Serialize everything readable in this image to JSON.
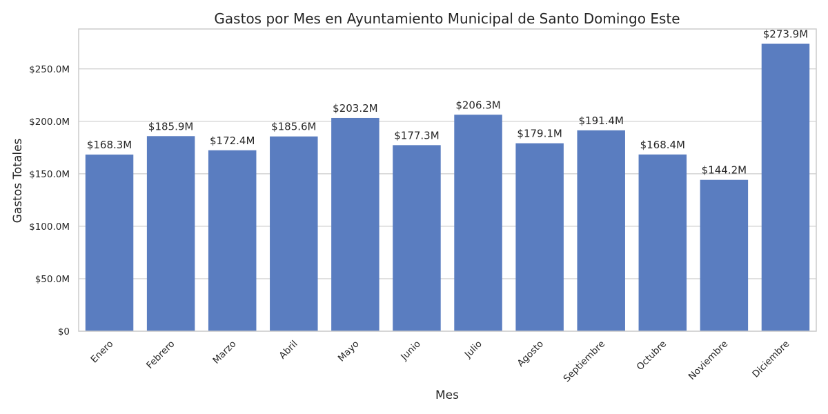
{
  "chart_data": {
    "type": "bar",
    "title": "Gastos por Mes en Ayuntamiento Municipal de Santo Domingo Este",
    "xlabel": "Mes",
    "ylabel": "Gastos Totales",
    "categories": [
      "Enero",
      "Febrero",
      "Marzo",
      "Abril",
      "Mayo",
      "Junio",
      "Julio",
      "Agosto",
      "Septiembre",
      "Octubre",
      "Noviembre",
      "Diciembre"
    ],
    "values": [
      168.3,
      185.9,
      172.4,
      185.6,
      203.2,
      177.3,
      206.3,
      179.1,
      191.4,
      168.4,
      144.2,
      273.9
    ],
    "value_unit": "millions",
    "data_labels": [
      "$168.3M",
      "$185.9M",
      "$172.4M",
      "$185.6M",
      "$203.2M",
      "$177.3M",
      "$206.3M",
      "$179.1M",
      "$191.4M",
      "$168.4M",
      "$144.2M",
      "$273.9M"
    ],
    "yticks": [
      0,
      50,
      100,
      150,
      200,
      250
    ],
    "ytick_labels": [
      "$0",
      "$50.0M",
      "$100.0M",
      "$150.0M",
      "$200.0M",
      "$250.0M"
    ],
    "ylim": [
      0,
      288
    ],
    "grid": true,
    "grid_axis": "y",
    "legend": "none",
    "x_tick_rotation": 45,
    "bar_color": "#5a7dc0"
  }
}
